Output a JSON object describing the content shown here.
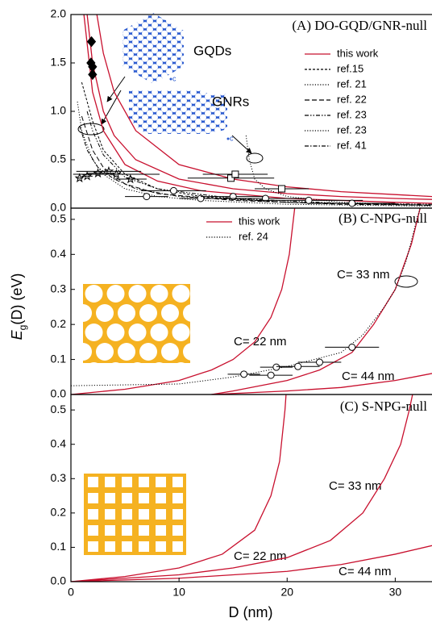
{
  "chart_data": [
    {
      "type": "line",
      "title": "(A) DO-GQD/GNR-null",
      "annotations": [
        "GQDs",
        "GNRs",
        "c",
        "c"
      ],
      "xlim": [
        0,
        33.4
      ],
      "ylim": [
        0,
        2
      ],
      "yticks": [
        {
          "value": 0,
          "label": "0.0"
        },
        0.5,
        {
          "value": 1,
          "label": "1.0"
        },
        1.5,
        {
          "value": 2,
          "label": "2.0"
        }
      ],
      "legend": "upper right",
      "series": [
        {
          "name": "this work",
          "color": "#c8102e",
          "style": "solid",
          "x": [
            1.5,
            2,
            3,
            4,
            6,
            10,
            15,
            20,
            25,
            30,
            33.4
          ],
          "values": [
            2.0,
            1.5,
            1.0,
            0.75,
            0.5,
            0.3,
            0.2,
            0.15,
            0.12,
            0.1,
            0.09
          ]
        },
        {
          "color": "#c8102e",
          "style": "solid",
          "x": [
            1.2,
            2,
            3,
            5,
            8,
            12,
            20,
            30,
            33.4
          ],
          "values": [
            2.0,
            1.2,
            0.8,
            0.45,
            0.28,
            0.18,
            0.1,
            0.06,
            0.05
          ]
        },
        {
          "color": "#c8102e",
          "style": "solid",
          "x": [
            2.4,
            3,
            4,
            6,
            10,
            15,
            20,
            25,
            30,
            33.4
          ],
          "values": [
            2.0,
            1.6,
            1.2,
            0.8,
            0.45,
            0.3,
            0.22,
            0.17,
            0.14,
            0.12
          ]
        },
        {
          "name": "ref.15",
          "color": "#000000",
          "style": "dash",
          "x": [
            1,
            2,
            3,
            5,
            8,
            12,
            20,
            33.4
          ],
          "values": [
            1.3,
            0.9,
            0.6,
            0.35,
            0.2,
            0.12,
            0.06,
            0.03
          ]
        },
        {
          "name": "ref. 21",
          "color": "#000000",
          "style": "dot",
          "x": [
            0.6,
            1,
            2,
            3,
            5,
            8,
            12,
            20,
            33.4
          ],
          "values": [
            1.1,
            0.8,
            0.5,
            0.35,
            0.2,
            0.12,
            0.08,
            0.04,
            0.02
          ]
        },
        {
          "name": "ref. 22",
          "color": "#000000",
          "style": "longdash",
          "x": [
            1,
            2,
            3,
            5,
            8,
            15,
            25,
            33.4
          ],
          "values": [
            0.95,
            0.6,
            0.42,
            0.25,
            0.15,
            0.08,
            0.04,
            0.03
          ]
        },
        {
          "name": "ref. 23",
          "color": "#000000",
          "style": "dashdotdot",
          "x": [
            1.5,
            2,
            3,
            5,
            8,
            15,
            25,
            33.4
          ],
          "values": [
            1.0,
            0.8,
            0.55,
            0.32,
            0.2,
            0.1,
            0.05,
            0.04
          ]
        },
        {
          "name": "ref. 23",
          "color": "#000000",
          "style": "dot",
          "x": [
            16.2,
            16.5,
            17,
            18,
            20,
            25,
            33.4
          ],
          "values": [
            0.75,
            0.5,
            0.3,
            0.2,
            0.12,
            0.06,
            0.03
          ]
        },
        {
          "name": "ref. 41",
          "color": "#000000",
          "style": "dashdot",
          "x": [
            0.8,
            1.5,
            2.5,
            4,
            6,
            10,
            20,
            33.4
          ],
          "values": [
            0.85,
            0.6,
            0.42,
            0.3,
            0.2,
            0.12,
            0.06,
            0.03
          ]
        }
      ],
      "points": [
        {
          "shape": "diamond",
          "x": [
            1.9,
            1.85,
            2.0,
            2.0
          ],
          "y": [
            1.72,
            1.5,
            1.46,
            1.38
          ]
        },
        {
          "shape": "square",
          "x": [
            14.8,
            15.2,
            19.5
          ],
          "y": [
            0.31,
            0.35,
            0.2
          ],
          "xerr": [
            4,
            3,
            2.5
          ]
        },
        {
          "shape": "star",
          "x": [
            0.8,
            1.5,
            2.5,
            3.5,
            4.2,
            5.5
          ],
          "y": [
            0.31,
            0.33,
            0.36,
            0.38,
            0.35,
            0.3
          ],
          "xerr": [
            0.3,
            0.5,
            1,
            3,
            4,
            1.5
          ]
        },
        {
          "shape": "circle",
          "x": [
            7,
            9.5,
            12,
            15,
            18,
            22,
            26
          ],
          "y": [
            0.12,
            0.18,
            0.1,
            0.12,
            0.1,
            0.08,
            0.05
          ],
          "xerr": [
            2,
            3,
            2,
            3,
            4,
            5,
            4
          ]
        }
      ]
    },
    {
      "type": "line",
      "title": "(B) C-NPG-null",
      "annotations": [
        "C= 33 nm",
        "C= 22 nm",
        "C= 44 nm"
      ],
      "ylabel": {
        "symbol": "E",
        "subscript": "g",
        "text": "(D) (eV)"
      },
      "xlim": [
        0,
        33.4
      ],
      "ylim": [
        0,
        0.532
      ],
      "yticks": [
        {
          "value": 0,
          "label": "0.0"
        },
        0.1,
        0.2,
        0.3,
        0.4,
        0.5
      ],
      "legend": "upper center",
      "series": [
        {
          "name": "this work",
          "color": "#c8102e",
          "style": "solid",
          "x": [
            0,
            5,
            10,
            13,
            15,
            17,
            18.5,
            19.5,
            20.2,
            20.7
          ],
          "values": [
            0,
            0.015,
            0.04,
            0.07,
            0.1,
            0.15,
            0.22,
            0.3,
            0.4,
            0.532
          ]
        },
        {
          "color": "#c8102e",
          "style": "solid",
          "x": [
            13,
            15,
            20,
            23,
            26,
            28,
            30,
            31.5,
            32.3
          ],
          "values": [
            0,
            0.01,
            0.04,
            0.07,
            0.12,
            0.2,
            0.3,
            0.43,
            0.532
          ]
        },
        {
          "color": "#c8102e",
          "style": "solid",
          "x": [
            13,
            20,
            25,
            30,
            33.4
          ],
          "values": [
            0,
            0.01,
            0.02,
            0.04,
            0.06
          ]
        },
        {
          "name": "ref. 24",
          "color": "#000000",
          "style": "dot",
          "x": [
            0,
            10,
            15,
            20,
            25,
            27,
            29,
            30,
            31,
            32,
            32.3
          ],
          "values": [
            0.025,
            0.03,
            0.05,
            0.08,
            0.12,
            0.17,
            0.25,
            0.3,
            0.38,
            0.5,
            0.532
          ]
        }
      ],
      "points": [
        {
          "shape": "circle",
          "x": [
            16,
            18.5,
            19,
            21,
            23,
            26
          ],
          "y": [
            0.058,
            0.055,
            0.078,
            0.08,
            0.092,
            0.135
          ],
          "xerr": [
            1.5,
            2,
            1.5,
            2,
            2,
            2.5
          ]
        }
      ]
    },
    {
      "type": "line",
      "title": "(C) S-NPG-null",
      "annotations": [
        "C= 33 nm",
        "C= 22 nm",
        "C= 44 nm"
      ],
      "xlabel": "D (nm)",
      "xlim": [
        0,
        33.4
      ],
      "ylim": [
        0,
        0.545
      ],
      "xticks": [
        0,
        10,
        20,
        30
      ],
      "yticks": [
        {
          "value": 0,
          "label": "0.0"
        },
        0.1,
        0.2,
        0.3,
        0.4,
        0.5
      ],
      "series": [
        {
          "color": "#c8102e",
          "style": "solid",
          "x": [
            0,
            5,
            10,
            14,
            17,
            18.5,
            19.3,
            19.8,
            19.9
          ],
          "values": [
            0,
            0.015,
            0.04,
            0.08,
            0.15,
            0.25,
            0.35,
            0.5,
            0.545
          ]
        },
        {
          "color": "#c8102e",
          "style": "solid",
          "x": [
            0,
            10,
            15,
            20,
            24,
            27,
            29,
            30.5,
            31.3,
            31.6
          ],
          "values": [
            0,
            0.02,
            0.04,
            0.07,
            0.12,
            0.2,
            0.3,
            0.4,
            0.5,
            0.545
          ]
        },
        {
          "color": "#c8102e",
          "style": "solid",
          "x": [
            0,
            10,
            20,
            25,
            30,
            33.4
          ],
          "values": [
            0,
            0.01,
            0.03,
            0.05,
            0.08,
            0.105
          ]
        }
      ]
    }
  ]
}
